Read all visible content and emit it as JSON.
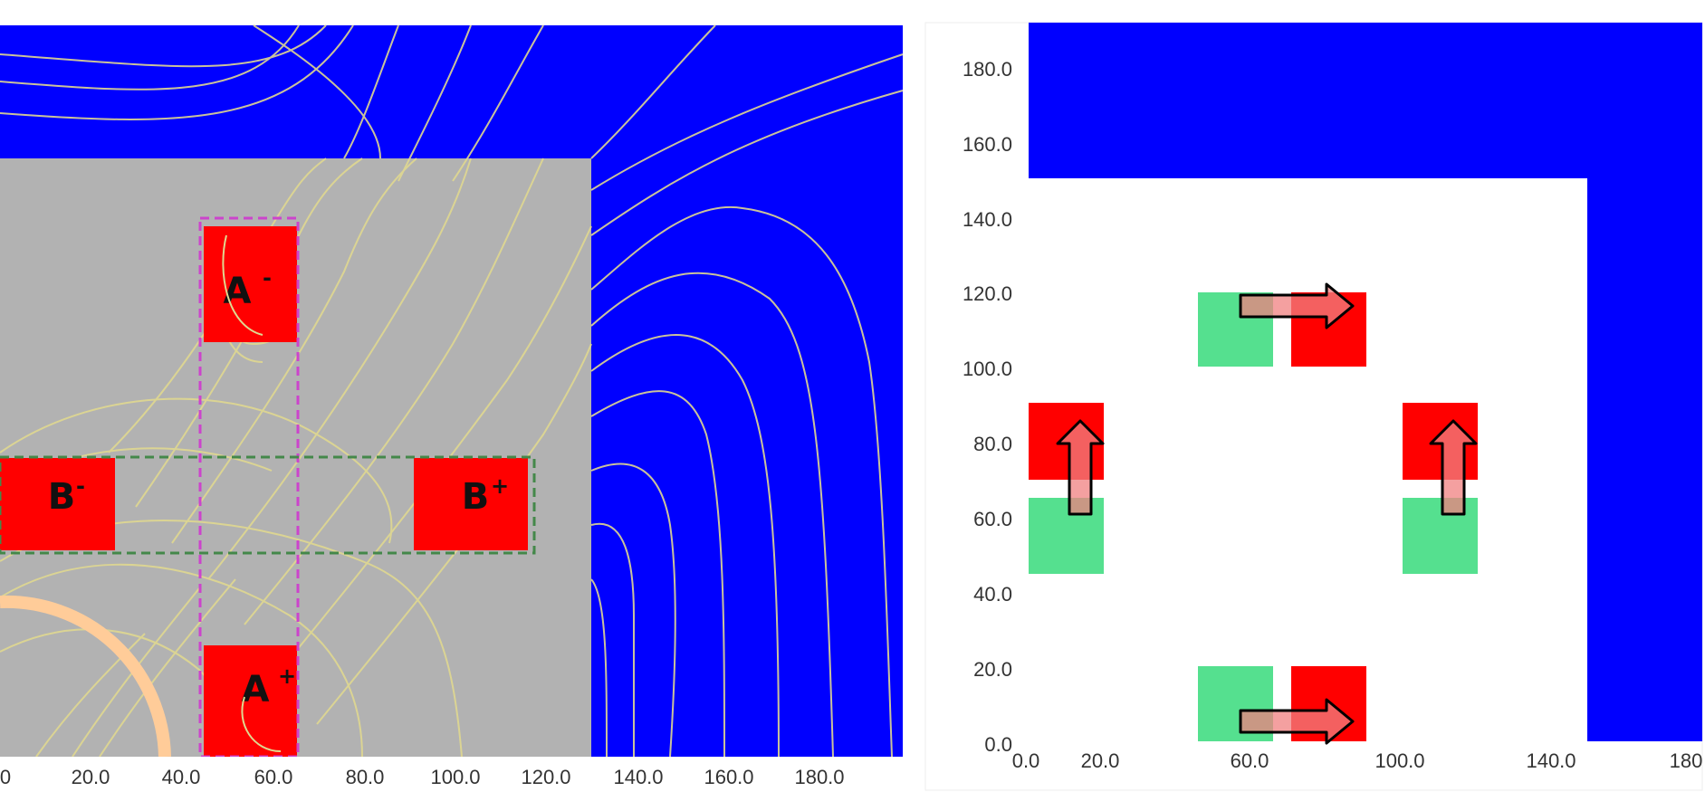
{
  "left_diagram": {
    "x_ticks": [
      "0",
      "20.0",
      "40.0",
      "60.0",
      "80.0",
      "100.0",
      "120.0",
      "140.0",
      "160.0",
      "180.0"
    ],
    "coils": [
      {
        "id": "a-minus",
        "label": "A",
        "sup": "-"
      },
      {
        "id": "b-minus",
        "label": "B",
        "sup": "-"
      },
      {
        "id": "b-plus",
        "label": "B",
        "sup": "+"
      },
      {
        "id": "a-plus",
        "label": "A",
        "sup": "+"
      }
    ],
    "colors": {
      "air": "#0000ff",
      "core": "#b2b2b2",
      "coil": "#ff0000",
      "flux_lines": "#e0d890",
      "rotor_arc": "#ffcc99",
      "phase_a_outline": "#cc44cc",
      "phase_b_outline": "#44884a"
    }
  },
  "right_diagram": {
    "y_ticks": [
      "180.0",
      "160.0",
      "140.0",
      "120.0",
      "100.0",
      "80.0",
      "60.0",
      "40.0",
      "20.0",
      "0.0"
    ],
    "x_ticks": [
      "0.0",
      "20.0",
      "60.0",
      "100.0",
      "140.0",
      "180"
    ],
    "colors": {
      "air": "#0000ff",
      "background": "#ffffff",
      "magnet_south": "#55e08f",
      "magnet_north": "#ff0000",
      "arrow_fill": "#f08080"
    }
  }
}
